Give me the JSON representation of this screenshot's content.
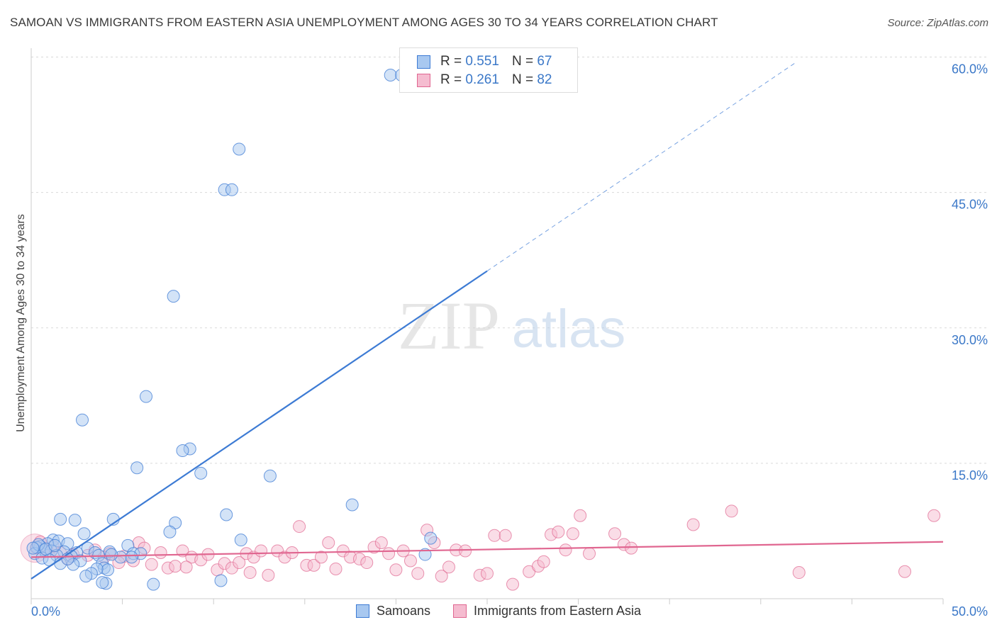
{
  "title": "SAMOAN VS IMMIGRANTS FROM EASTERN ASIA UNEMPLOYMENT AMONG AGES 30 TO 34 YEARS CORRELATION CHART",
  "source": "Source: ZipAtlas.com",
  "watermark": {
    "zip": "ZIP",
    "atlas": "atlas"
  },
  "legend": {
    "rows": [
      {
        "r_label": "R =",
        "r_value": "0.551",
        "n_label": "N =",
        "n_value": "67"
      },
      {
        "r_label": "R =",
        "r_value": "0.261",
        "n_label": "N =",
        "n_value": "82"
      }
    ]
  },
  "bottom_legend": {
    "series1": "Samoans",
    "series2": "Immigrants from Eastern Asia"
  },
  "chart_data": {
    "type": "scatter",
    "title": "SAMOAN VS IMMIGRANTS FROM EASTERN ASIA UNEMPLOYMENT AMONG AGES 30 TO 34 YEARS CORRELATION CHART",
    "xlabel": "",
    "ylabel": "Unemployment Among Ages 30 to 34 years",
    "xlim": [
      0,
      50
    ],
    "ylim": [
      0,
      60
    ],
    "x_tick_labels": [
      "0.0%",
      "50.0%"
    ],
    "y_ticks": [
      15,
      30,
      45,
      60
    ],
    "y_tick_labels": [
      "15.0%",
      "30.0%",
      "45.0%",
      "60.0%"
    ],
    "grid": true,
    "colors": {
      "samoans": "#3d7bd4",
      "samoans_fill": "#a8c8f0",
      "eastern_asia": "#e06690",
      "eastern_asia_fill": "#f5bcd0"
    },
    "series": [
      {
        "name": "Samoans",
        "R": 0.551,
        "N": 67,
        "trend": {
          "x0": 0,
          "y0": 2.2,
          "x1": 25,
          "y1": 36.3,
          "dash_to_x": 42,
          "dash_to_y": 59.5
        },
        "points": [
          [
            19.7,
            58.0
          ],
          [
            20.3,
            58.0
          ],
          [
            11.4,
            49.8
          ],
          [
            10.6,
            45.3
          ],
          [
            11.0,
            45.3
          ],
          [
            7.8,
            33.5
          ],
          [
            6.3,
            22.4
          ],
          [
            2.8,
            19.8
          ],
          [
            8.7,
            16.6
          ],
          [
            8.3,
            16.4
          ],
          [
            5.8,
            14.5
          ],
          [
            9.3,
            13.9
          ],
          [
            13.1,
            13.6
          ],
          [
            17.6,
            10.4
          ],
          [
            10.7,
            9.3
          ],
          [
            4.5,
            8.8
          ],
          [
            1.6,
            8.8
          ],
          [
            2.4,
            8.7
          ],
          [
            7.9,
            8.4
          ],
          [
            7.6,
            7.4
          ],
          [
            2.9,
            7.2
          ],
          [
            11.5,
            6.5
          ],
          [
            21.9,
            6.7
          ],
          [
            1.2,
            6.5
          ],
          [
            1.5,
            6.4
          ],
          [
            0.9,
            6.1
          ],
          [
            2.0,
            6.1
          ],
          [
            5.3,
            5.9
          ],
          [
            3.1,
            5.6
          ],
          [
            0.5,
            5.8
          ],
          [
            0.3,
            5.7
          ],
          [
            0.7,
            5.4
          ],
          [
            1.1,
            5.3
          ],
          [
            1.8,
            5.2
          ],
          [
            2.5,
            5.1
          ],
          [
            3.5,
            5.1
          ],
          [
            4.3,
            5.2
          ],
          [
            5.6,
            5.0
          ],
          [
            6.0,
            5.0
          ],
          [
            0.2,
            5.0
          ],
          [
            1.4,
            4.8
          ],
          [
            2.2,
            4.7
          ],
          [
            3.7,
            4.8
          ],
          [
            4.9,
            4.6
          ],
          [
            0.6,
            4.5
          ],
          [
            1.0,
            4.3
          ],
          [
            2.7,
            4.2
          ],
          [
            3.9,
            3.9
          ],
          [
            1.6,
            3.9
          ],
          [
            2.3,
            3.8
          ],
          [
            4.0,
            3.4
          ],
          [
            4.2,
            3.2
          ],
          [
            3.6,
            3.3
          ],
          [
            3.3,
            2.8
          ],
          [
            3.0,
            2.5
          ],
          [
            4.1,
            1.7
          ],
          [
            3.9,
            1.8
          ],
          [
            6.7,
            1.6
          ],
          [
            10.4,
            2.0
          ],
          [
            21.6,
            4.9
          ],
          [
            0.4,
            6.0
          ],
          [
            0.8,
            5.5
          ],
          [
            1.3,
            5.9
          ],
          [
            0.1,
            5.6
          ],
          [
            2.0,
            4.4
          ],
          [
            4.4,
            4.9
          ],
          [
            5.5,
            4.6
          ]
        ]
      },
      {
        "name": "Immigrants from Eastern Asia",
        "R": 0.261,
        "N": 82,
        "trend": {
          "x0": 0,
          "y0": 4.6,
          "x1": 50,
          "y1": 6.3
        },
        "points": [
          [
            0.3,
            5.6
          ],
          [
            0.9,
            5.3
          ],
          [
            1.6,
            5.1
          ],
          [
            2.3,
            4.9
          ],
          [
            3.1,
            4.8
          ],
          [
            3.5,
            5.4
          ],
          [
            4.3,
            5.0
          ],
          [
            5.1,
            4.7
          ],
          [
            5.6,
            4.2
          ],
          [
            5.9,
            6.2
          ],
          [
            6.2,
            5.6
          ],
          [
            6.6,
            3.8
          ],
          [
            7.1,
            5.1
          ],
          [
            7.5,
            3.4
          ],
          [
            7.9,
            3.6
          ],
          [
            8.3,
            5.3
          ],
          [
            8.8,
            4.6
          ],
          [
            9.3,
            4.3
          ],
          [
            9.7,
            4.9
          ],
          [
            10.2,
            3.2
          ],
          [
            10.6,
            3.9
          ],
          [
            11.0,
            3.4
          ],
          [
            11.4,
            4.0
          ],
          [
            11.8,
            5.0
          ],
          [
            12.2,
            4.6
          ],
          [
            12.6,
            5.3
          ],
          [
            13.0,
            2.6
          ],
          [
            13.5,
            5.3
          ],
          [
            13.9,
            4.6
          ],
          [
            14.3,
            5.1
          ],
          [
            14.7,
            8.0
          ],
          [
            15.1,
            3.7
          ],
          [
            15.5,
            3.7
          ],
          [
            15.9,
            4.6
          ],
          [
            16.3,
            6.2
          ],
          [
            16.7,
            3.3
          ],
          [
            17.1,
            5.3
          ],
          [
            17.5,
            4.6
          ],
          [
            18.0,
            4.4
          ],
          [
            18.4,
            4.0
          ],
          [
            18.8,
            5.7
          ],
          [
            19.2,
            6.2
          ],
          [
            19.6,
            5.0
          ],
          [
            20.0,
            3.2
          ],
          [
            20.4,
            5.3
          ],
          [
            20.8,
            4.2
          ],
          [
            21.2,
            2.8
          ],
          [
            21.7,
            7.6
          ],
          [
            22.1,
            6.2
          ],
          [
            22.5,
            2.5
          ],
          [
            22.9,
            3.5
          ],
          [
            23.3,
            5.4
          ],
          [
            23.8,
            5.3
          ],
          [
            24.6,
            2.6
          ],
          [
            25.0,
            2.8
          ],
          [
            25.4,
            7.0
          ],
          [
            26.0,
            7.0
          ],
          [
            26.4,
            1.6
          ],
          [
            27.3,
            3.0
          ],
          [
            27.8,
            3.6
          ],
          [
            28.1,
            4.1
          ],
          [
            28.5,
            7.1
          ],
          [
            28.9,
            7.4
          ],
          [
            29.3,
            5.4
          ],
          [
            29.7,
            7.2
          ],
          [
            30.1,
            9.2
          ],
          [
            30.6,
            5.0
          ],
          [
            32.0,
            7.2
          ],
          [
            32.5,
            6.0
          ],
          [
            32.9,
            5.6
          ],
          [
            36.3,
            8.2
          ],
          [
            38.4,
            9.7
          ],
          [
            42.1,
            2.9
          ],
          [
            47.9,
            3.0
          ],
          [
            49.5,
            9.2
          ],
          [
            0.5,
            6.3
          ],
          [
            1.2,
            5.8
          ],
          [
            2.0,
            4.4
          ],
          [
            4.0,
            4.6
          ],
          [
            4.8,
            4.0
          ],
          [
            8.5,
            3.5
          ],
          [
            12.0,
            2.9
          ]
        ]
      }
    ]
  }
}
